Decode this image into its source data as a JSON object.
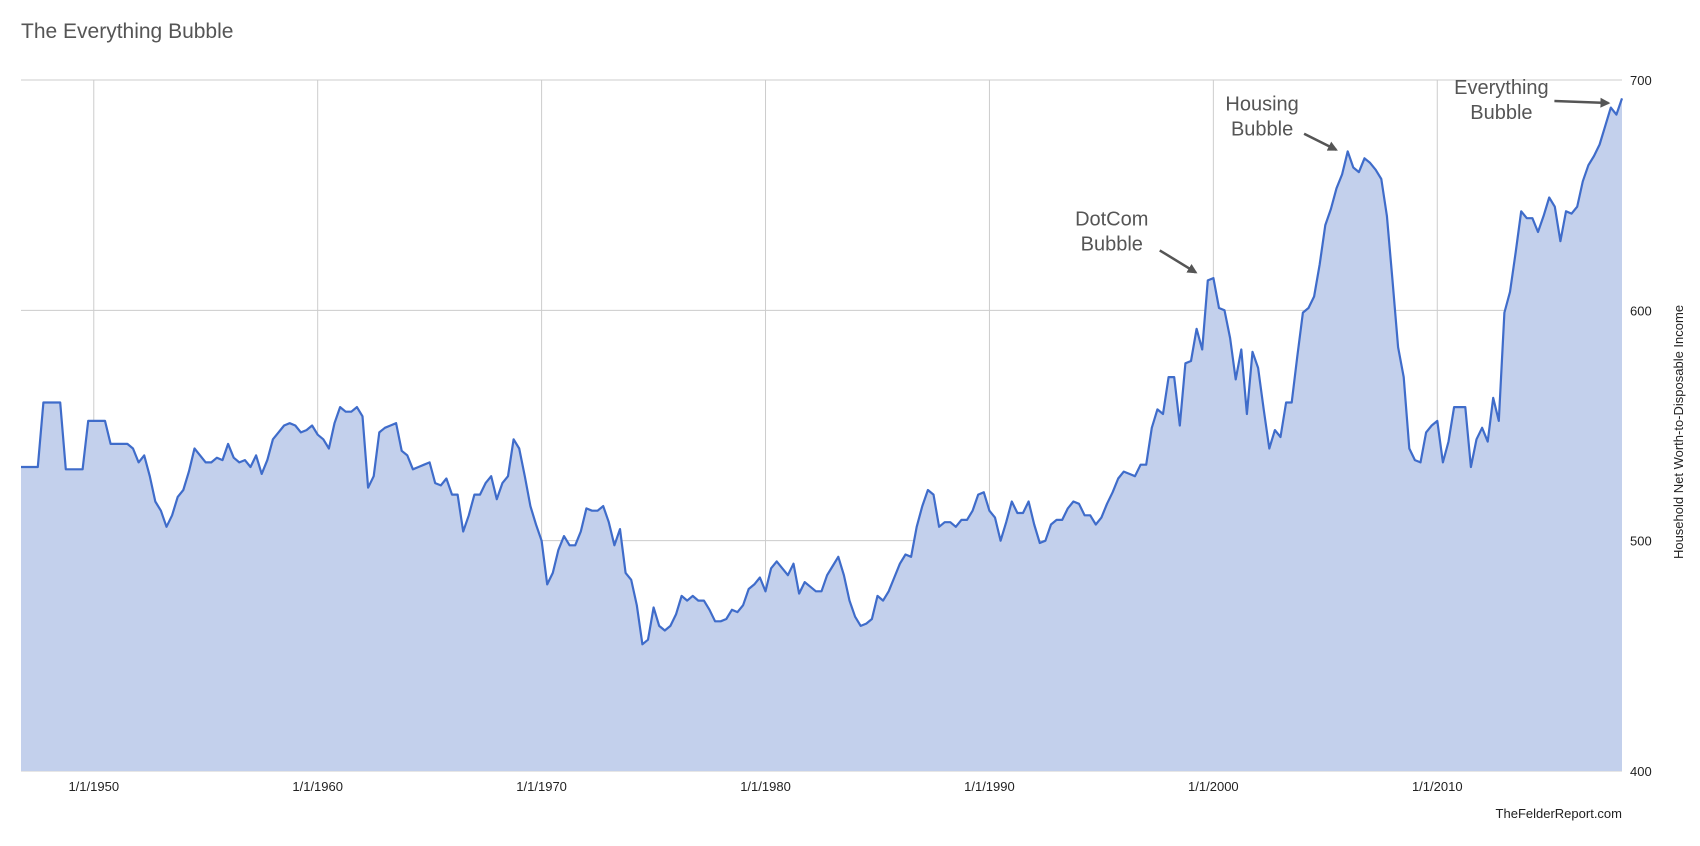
{
  "title": "The Everything Bubble",
  "credit": "TheFelderReport.com",
  "colors": {
    "line": "#3f6cca",
    "fill": "#c3d0ec",
    "grid": "#cccccc",
    "arrow": "#555555"
  },
  "chart_data": {
    "type": "area",
    "title": "The Everything Bubble",
    "ylabel": "Household Net Worth-to-Disposable Income",
    "ylim": [
      400,
      700
    ],
    "y_axis_position": "right",
    "y_ticks": [
      400,
      500,
      600,
      700
    ],
    "x_ticks": [
      {
        "label": "1/1/1950",
        "year": 1950
      },
      {
        "label": "1/1/1960",
        "year": 1960
      },
      {
        "label": "1/1/1970",
        "year": 1970
      },
      {
        "label": "1/1/1980",
        "year": 1980
      },
      {
        "label": "1/1/1990",
        "year": 1990
      },
      {
        "label": "1/1/2000",
        "year": 2000
      },
      {
        "label": "1/1/2010",
        "year": 2010
      }
    ],
    "grid": true,
    "xlim_years": [
      1946.75,
      2018.25
    ],
    "series": [
      {
        "x": [
          1946.75,
          1947.5,
          1947.75,
          1948.5,
          1948.75,
          1949.5,
          1949.75,
          1950.5,
          1950.75,
          1951.5,
          1951.75,
          1952.0,
          1952.25,
          1952.5,
          1952.75,
          1953.0,
          1953.25,
          1953.5,
          1953.75,
          1954.0,
          1954.25,
          1954.5,
          1954.75,
          1955.0,
          1955.25,
          1955.5,
          1955.75,
          1956.0,
          1956.25,
          1956.5,
          1956.75,
          1957.0,
          1957.25,
          1957.5,
          1957.75,
          1958.0,
          1958.25,
          1958.5,
          1958.75,
          1959.0,
          1959.25,
          1959.5,
          1959.75,
          1960.0,
          1960.25,
          1960.5,
          1960.75,
          1961.0,
          1961.25,
          1961.5,
          1961.75,
          1962.0,
          1962.25,
          1962.5,
          1962.75,
          1963.0,
          1963.25,
          1963.5,
          1963.75,
          1964.0,
          1964.25,
          1964.5,
          1964.75,
          1965.0,
          1965.25,
          1965.5,
          1965.75,
          1966.0,
          1966.25,
          1966.5,
          1966.75,
          1967.0,
          1967.25,
          1967.5,
          1967.75,
          1968.0,
          1968.25,
          1968.5,
          1968.75,
          1969.0,
          1969.25,
          1969.5,
          1969.75,
          1970.0,
          1970.25,
          1970.5,
          1970.75,
          1971.0,
          1971.25,
          1971.5,
          1971.75,
          1972.0,
          1972.25,
          1972.5,
          1972.75,
          1973.0,
          1973.25,
          1973.5,
          1973.75,
          1974.0,
          1974.25,
          1974.5,
          1974.75,
          1975.0,
          1975.25,
          1975.5,
          1975.75,
          1976.0,
          1976.25,
          1976.5,
          1976.75,
          1977.0,
          1977.25,
          1977.5,
          1977.75,
          1978.0,
          1978.25,
          1978.5,
          1978.75,
          1979.0,
          1979.25,
          1979.5,
          1979.75,
          1980.0,
          1980.25,
          1980.5,
          1980.75,
          1981.0,
          1981.25,
          1981.5,
          1981.75,
          1982.0,
          1982.25,
          1982.5,
          1982.75,
          1983.0,
          1983.25,
          1983.5,
          1983.75,
          1984.0,
          1984.25,
          1984.5,
          1984.75,
          1985.0,
          1985.25,
          1985.5,
          1985.75,
          1986.0,
          1986.25,
          1986.5,
          1986.75,
          1987.0,
          1987.25,
          1987.5,
          1987.75,
          1988.0,
          1988.25,
          1988.5,
          1988.75,
          1989.0,
          1989.25,
          1989.5,
          1989.75,
          1990.0,
          1990.25,
          1990.5,
          1990.75,
          1991.0,
          1991.25,
          1991.5,
          1991.75,
          1992.0,
          1992.25,
          1992.5,
          1992.75,
          1993.0,
          1993.25,
          1993.5,
          1993.75,
          1994.0,
          1994.25,
          1994.5,
          1994.75,
          1995.0,
          1995.25,
          1995.5,
          1995.75,
          1996.0,
          1996.25,
          1996.5,
          1996.75,
          1997.0,
          1997.25,
          1997.5,
          1997.75,
          1998.0,
          1998.25,
          1998.5,
          1998.75,
          1999.0,
          1999.25,
          1999.5,
          1999.75,
          2000.0,
          2000.25,
          2000.5,
          2000.75,
          2001.0,
          2001.25,
          2001.5,
          2001.75,
          2002.0,
          2002.25,
          2002.5,
          2002.75,
          2003.0,
          2003.25,
          2003.5,
          2003.75,
          2004.0,
          2004.25,
          2004.5,
          2004.75,
          2005.0,
          2005.25,
          2005.5,
          2005.75,
          2006.0,
          2006.25,
          2006.5,
          2006.75,
          2007.0,
          2007.25,
          2007.5,
          2007.75,
          2008.0,
          2008.25,
          2008.5,
          2008.75,
          2009.0,
          2009.25,
          2009.5,
          2009.75,
          2010.0,
          2010.25,
          2010.5,
          2010.75,
          2011.0,
          2011.25,
          2011.5,
          2011.75,
          2012.0,
          2012.25,
          2012.5,
          2012.75,
          2013.0,
          2013.25,
          2013.5,
          2013.75,
          2014.0,
          2014.25,
          2014.5,
          2014.75,
          2015.0,
          2015.25,
          2015.5,
          2015.75,
          2016.0,
          2016.25,
          2016.5,
          2016.75,
          2017.0,
          2017.25,
          2017.5,
          2017.75,
          2018.0,
          2018.25
        ],
        "y": [
          532,
          532,
          560,
          560,
          531,
          531,
          552,
          552,
          542,
          542,
          540,
          534,
          537,
          528,
          517,
          513,
          506,
          511,
          519,
          522,
          530,
          540,
          537,
          534,
          534,
          536,
          535,
          542,
          536,
          534,
          535,
          532,
          537,
          529,
          535,
          544,
          547,
          550,
          551,
          550,
          547,
          548,
          550,
          546,
          544,
          540,
          551,
          558,
          556,
          556,
          558,
          554,
          523,
          528,
          547,
          549,
          550,
          551,
          539,
          537,
          531,
          532,
          533,
          534,
          525,
          524,
          527,
          520,
          520,
          504,
          511,
          520,
          520,
          525,
          528,
          518,
          525,
          528,
          544,
          540,
          528,
          515,
          507,
          500,
          481,
          486,
          496,
          502,
          498,
          498,
          504,
          514,
          513,
          513,
          515,
          508,
          498,
          505,
          486,
          483,
          472,
          455,
          457,
          471,
          463,
          461,
          463,
          468,
          476,
          474,
          476,
          474,
          474,
          470,
          465,
          465,
          466,
          470,
          469,
          472,
          479,
          481,
          484,
          478,
          488,
          491,
          488,
          485,
          490,
          477,
          482,
          480,
          478,
          478,
          485,
          489,
          493,
          485,
          474,
          467,
          463,
          464,
          466,
          476,
          474,
          478,
          484,
          490,
          494,
          493,
          506,
          515,
          522,
          520,
          506,
          508,
          508,
          506,
          509,
          509,
          513,
          520,
          521,
          513,
          510,
          500,
          508,
          517,
          512,
          512,
          517,
          507,
          499,
          500,
          507,
          509,
          509,
          514,
          517,
          516,
          511,
          511,
          507,
          510,
          516,
          521,
          527,
          530,
          529,
          528,
          533,
          533,
          549,
          557,
          555,
          571,
          571,
          550,
          577,
          578,
          592,
          583,
          613,
          614,
          601,
          600,
          588,
          570,
          583,
          555,
          582,
          575,
          557,
          540,
          548,
          545,
          560,
          560,
          580,
          599,
          601,
          606,
          620,
          637,
          644,
          653,
          659,
          669,
          662,
          660,
          666,
          664,
          661,
          657,
          641,
          613,
          584,
          571,
          540,
          535,
          534,
          547,
          550,
          552,
          534,
          543,
          558,
          558,
          558,
          532,
          544,
          549,
          543,
          562,
          552,
          599,
          608,
          625,
          643,
          640,
          640,
          634,
          641,
          649,
          645,
          630,
          643,
          642,
          645,
          656,
          663,
          667,
          672,
          680,
          688,
          685,
          692
        ]
      }
    ],
    "annotations": [
      {
        "text": [
          "DotCom",
          "Bubble"
        ],
        "year": 1999.75,
        "value": 613
      },
      {
        "text": [
          "Housing",
          "Bubble"
        ],
        "year": 2005.75,
        "value": 668
      },
      {
        "text": [
          "Everything",
          "Bubble"
        ],
        "year": 2018.0,
        "value": 690
      }
    ]
  }
}
